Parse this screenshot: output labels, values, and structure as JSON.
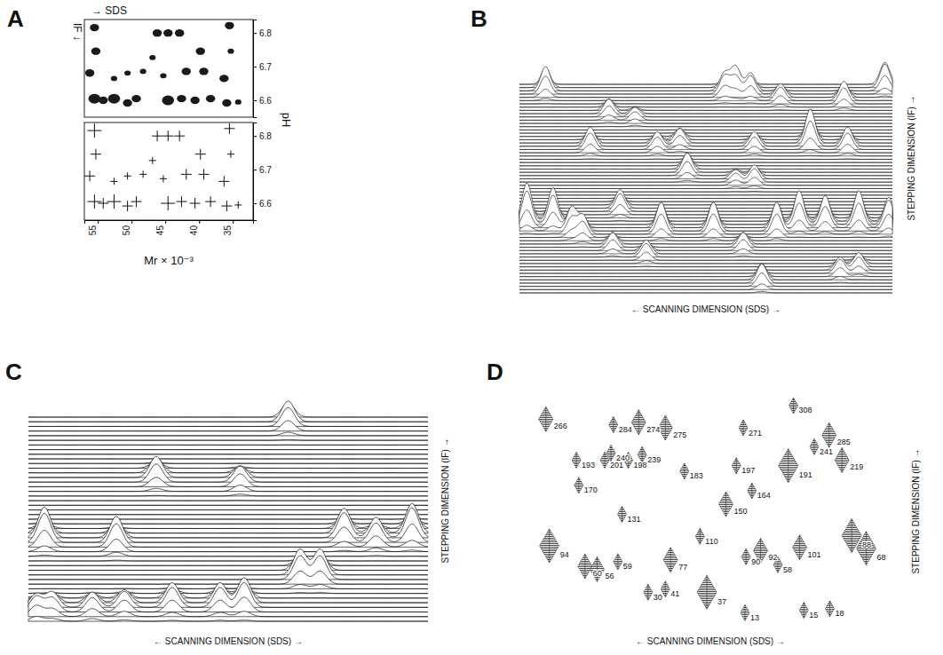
{
  "chart_data": [
    {
      "panel": "A",
      "type": "scatter",
      "annotations": [
        "→ SDS",
        "IF ↓"
      ],
      "x_label": "Mr × 10⁻³",
      "y_label": "pH",
      "xlim": [
        57,
        32
      ],
      "xticks": [
        55,
        50,
        45,
        40,
        35
      ],
      "ylim": [
        6.55,
        6.84
      ],
      "yticks": [
        6.6,
        6.7,
        6.8
      ],
      "series": [
        {
          "marker": "blob",
          "x": [
            55.5,
            55.3,
            56.2,
            52.6,
            50.6,
            48.3,
            46.9,
            46.2,
            44.6,
            42.9,
            45.3,
            41.9,
            39.8,
            39.3,
            35.5,
            35.3,
            36.3,
            55.5,
            54.2,
            52.6,
            50.6,
            49.3,
            44.6,
            42.6,
            40.6,
            38.3,
            35.9,
            34.2
          ],
          "y": [
            6.816,
            6.746,
            6.681,
            6.665,
            6.681,
            6.686,
            6.727,
            6.8,
            6.8,
            6.8,
            6.673,
            6.686,
            6.746,
            6.686,
            6.822,
            6.746,
            6.665,
            6.605,
            6.6,
            6.605,
            6.592,
            6.605,
            6.6,
            6.605,
            6.6,
            6.605,
            6.592,
            6.595
          ],
          "size": [
            2,
            2,
            2,
            1,
            1,
            1,
            1,
            2,
            2,
            2,
            1,
            2,
            2,
            2,
            2,
            1,
            2,
            3,
            2,
            3,
            2,
            2,
            3,
            2,
            2,
            2,
            2,
            1
          ]
        },
        {
          "marker": "cross",
          "x": [
            55.5,
            55.3,
            56.2,
            52.6,
            50.6,
            48.3,
            46.9,
            46.2,
            44.6,
            42.9,
            45.3,
            41.9,
            39.8,
            39.3,
            35.5,
            35.3,
            36.3,
            55.5,
            54.2,
            52.6,
            50.6,
            49.3,
            44.6,
            42.6,
            40.6,
            38.3,
            35.9,
            34.2
          ],
          "y": [
            6.816,
            6.746,
            6.681,
            6.665,
            6.681,
            6.686,
            6.727,
            6.8,
            6.8,
            6.8,
            6.673,
            6.686,
            6.746,
            6.686,
            6.822,
            6.746,
            6.665,
            6.605,
            6.6,
            6.605,
            6.592,
            6.605,
            6.6,
            6.605,
            6.6,
            6.605,
            6.592,
            6.595
          ],
          "size": [
            3,
            2,
            2,
            1,
            1,
            1,
            1,
            2,
            2,
            2,
            1,
            2,
            2,
            2,
            2,
            1,
            2,
            3,
            2,
            3,
            2,
            2,
            3,
            2,
            2,
            2,
            2,
            1
          ]
        }
      ]
    },
    {
      "panel": "B",
      "type": "waterfall",
      "x_label": "← SCANNING DIMENSION (SDS) →",
      "y_label": "STEPPING DIMENSION (IF) →",
      "xlim": [
        0,
        100
      ],
      "ylim": [
        0,
        100
      ],
      "tick_labels": false,
      "peaks": {
        "x": [
          7,
          24,
          31,
          55,
          58,
          62,
          70,
          87,
          98,
          19,
          37,
          43,
          63,
          78,
          88,
          45,
          58,
          63,
          2,
          9,
          14,
          17,
          27,
          25,
          34,
          38,
          52,
          60,
          69,
          75,
          82,
          91,
          99,
          65,
          86,
          91
        ],
        "y": [
          97,
          86,
          84,
          96,
          97,
          96,
          93,
          92,
          99,
          70,
          70,
          72,
          70,
          72,
          70,
          58,
          54,
          54,
          34,
          34,
          30,
          28,
          40,
          22,
          18,
          30,
          30,
          22,
          30,
          33,
          33,
          33,
          32,
          5,
          10,
          12
        ],
        "height": [
          5,
          3,
          2,
          4,
          5,
          4,
          3,
          4,
          5,
          4,
          3,
          3,
          3,
          7,
          4,
          4,
          2,
          3,
          8,
          7,
          5,
          4,
          4,
          3,
          3,
          6,
          6,
          3,
          6,
          7,
          6,
          7,
          6,
          4,
          3,
          3
        ]
      }
    },
    {
      "panel": "C",
      "type": "waterfall",
      "x_label": "← SCANNING DIMENSION (SDS) →",
      "y_label": "STEPPING DIMENSION (IF) →",
      "xlim": [
        0,
        100
      ],
      "ylim": [
        0,
        100
      ],
      "tick_labels": false,
      "peaks": {
        "x": [
          65,
          32,
          53,
          4,
          22,
          79,
          87,
          96,
          68,
          73,
          2,
          6,
          16,
          24,
          36,
          48,
          54
        ],
        "y": [
          97,
          70,
          68,
          40,
          38,
          42,
          40,
          42,
          22,
          22,
          5,
          6,
          6,
          7,
          8,
          8,
          8
        ],
        "height": [
          4,
          4,
          3,
          6,
          5,
          5,
          4,
          6,
          5,
          5,
          3,
          3,
          3,
          3,
          4,
          4,
          5
        ]
      }
    },
    {
      "panel": "D",
      "type": "spots",
      "x_label": "← SCANNING DIMENSION (SDS) →",
      "y_label": "STEPPING DIMENSION (IF) →",
      "xlim": [
        0,
        100
      ],
      "ylim": [
        0,
        100
      ],
      "tick_labels": false,
      "points": {
        "labels": [
          "266",
          "284",
          "274",
          "275",
          "271",
          "308",
          "285",
          "240",
          "239",
          "241",
          "219",
          "193",
          "201",
          "198",
          "183",
          "197",
          "191",
          "170",
          "164",
          "150",
          "131",
          "110",
          "94",
          "60",
          "56",
          "59",
          "77",
          "30",
          "41",
          "37",
          "90",
          "92",
          "58",
          "101",
          "88",
          "68",
          "13",
          "15",
          "18"
        ],
        "x": [
          2.5,
          22,
          29.3,
          37,
          59.5,
          74,
          84.3,
          21.3,
          30.3,
          80,
          88,
          11.3,
          19.5,
          26.3,
          42.5,
          57.5,
          72.5,
          12,
          62,
          54.5,
          24.5,
          47,
          3.5,
          13.8,
          17.3,
          23.3,
          38.5,
          32,
          37,
          49,
          60.3,
          64.5,
          69.5,
          75.8,
          90.8,
          95,
          60,
          77,
          84.5
        ],
        "y": [
          91.8,
          89.3,
          90.4,
          87.9,
          87.9,
          98,
          84.6,
          76.4,
          75.7,
          79.3,
          73.2,
          73.2,
          73.2,
          73.2,
          68.2,
          70.7,
          70.7,
          61.8,
          59.3,
          53.2,
          48.6,
          38.6,
          34.3,
          25,
          23.6,
          27.1,
          27.9,
          13.2,
          14.6,
          13.2,
          29.3,
          32.1,
          25.7,
          33.6,
          38.9,
          33.2,
          3.9,
          5,
          5.7
        ],
        "size": [
          2,
          1,
          2,
          2,
          1,
          1,
          2,
          1,
          1,
          1,
          2,
          1,
          1,
          1,
          1,
          1,
          3,
          1,
          1,
          2,
          1,
          1,
          3,
          2,
          2,
          1,
          2,
          1,
          1,
          3,
          1,
          2,
          1,
          2,
          3,
          3,
          1,
          1,
          1
        ]
      }
    }
  ]
}
